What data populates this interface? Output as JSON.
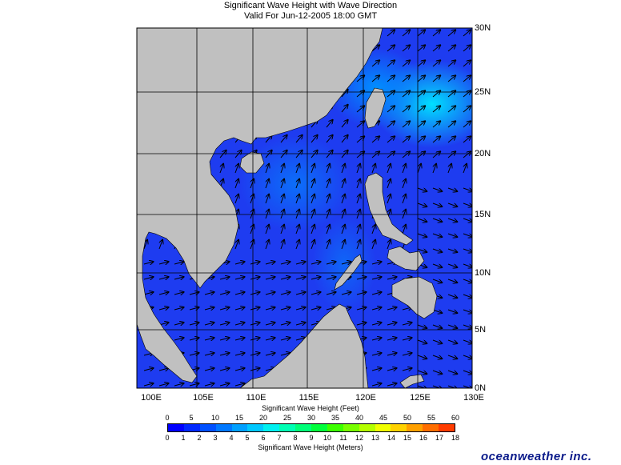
{
  "title_line1": "Significant Wave Height with Wave Direction",
  "title_line2": "Valid For Jun-12-2005 18:00 GMT",
  "lat_labels": [
    "30N",
    "25N",
    "20N",
    "15N",
    "10N",
    "5N",
    "0N"
  ],
  "lon_labels": [
    "100E",
    "105E",
    "110E",
    "115E",
    "120E",
    "125E",
    "130E"
  ],
  "feet_label": "Significant Wave Height (Feet)",
  "feet_ticks": [
    "0",
    "5",
    "10",
    "15",
    "20",
    "25",
    "30",
    "35",
    "40",
    "45",
    "50",
    "55",
    "60"
  ],
  "meter_label": "Significant Wave Height (Meters)",
  "meter_ticks": [
    "0",
    "1",
    "2",
    "3",
    "4",
    "5",
    "6",
    "7",
    "8",
    "9",
    "10",
    "11",
    "12",
    "13",
    "14",
    "15",
    "16",
    "17",
    "18"
  ],
  "colorbar_colors": [
    "#0000ff",
    "#0028ff",
    "#0050ff",
    "#0078ff",
    "#00a0ff",
    "#00c8ff",
    "#00f0f0",
    "#00ffb4",
    "#00ff78",
    "#00ff3c",
    "#3cff00",
    "#78ff00",
    "#b4ff00",
    "#f0ff00",
    "#ffd200",
    "#ffa000",
    "#ff6e00",
    "#ff3c00"
  ],
  "land_color": "#c0c0c0",
  "sea_color": "#1e3cf0",
  "brand": "oceanweather inc."
}
